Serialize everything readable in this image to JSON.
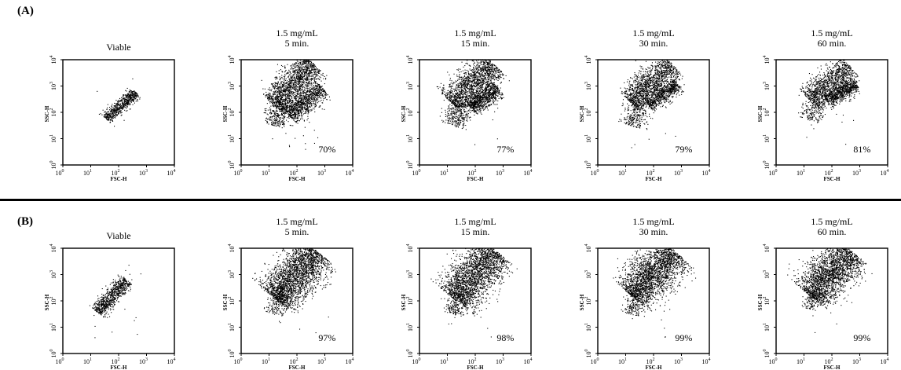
{
  "panels": [
    {
      "label": "(A)"
    },
    {
      "label": "(B)"
    }
  ],
  "chart_data": [
    {
      "type": "scatter",
      "panel": "(A)",
      "title": "Viable",
      "subtitle": "",
      "xlabel": "FSC-H",
      "ylabel": "SSC-H",
      "log": true,
      "xlim": [
        1,
        10000
      ],
      "ylim": [
        1,
        10000
      ],
      "ticks": [
        "10",
        "10",
        "10",
        "10",
        "10"
      ],
      "tick_exp": [
        "0",
        "1",
        "2",
        "3",
        "4"
      ],
      "percent": "",
      "clusters": [
        {
          "x0": 1.55,
          "y0": 1.75,
          "x1": 2.6,
          "y1": 2.78,
          "w": 0.11,
          "n": 650
        }
      ],
      "outliers": 6
    },
    {
      "type": "scatter",
      "panel": "(A)",
      "title": "1.5 mg/mL",
      "subtitle": "5 min.",
      "xlabel": "FSC-H",
      "ylabel": "SSC-H",
      "log": true,
      "xlim": [
        1,
        10000
      ],
      "ylim": [
        1,
        10000
      ],
      "ticks": [
        "10",
        "10",
        "10",
        "10",
        "10"
      ],
      "tick_exp": [
        "0",
        "1",
        "2",
        "3",
        "4"
      ],
      "percent": "70%",
      "clusters": [
        {
          "x0": 1.15,
          "y0": 2.3,
          "x1": 2.6,
          "y1": 3.85,
          "w": 0.3,
          "n": 1500
        },
        {
          "x0": 1.7,
          "y0": 1.9,
          "x1": 2.9,
          "y1": 2.95,
          "w": 0.2,
          "n": 900
        },
        {
          "x0": 1.2,
          "y0": 1.5,
          "x1": 1.45,
          "y1": 2.4,
          "w": 0.22,
          "n": 300
        }
      ],
      "outliers": 20
    },
    {
      "type": "scatter",
      "panel": "(A)",
      "title": "1.5 mg/mL",
      "subtitle": "15 min.",
      "xlabel": "FSC-H",
      "ylabel": "SSC-H",
      "log": true,
      "xlim": [
        1,
        10000
      ],
      "ylim": [
        1,
        10000
      ],
      "ticks": [
        "10",
        "10",
        "10",
        "10",
        "10"
      ],
      "tick_exp": [
        "0",
        "1",
        "2",
        "3",
        "4"
      ],
      "percent": "77%",
      "clusters": [
        {
          "x0": 1.15,
          "y0": 2.35,
          "x1": 2.65,
          "y1": 3.85,
          "w": 0.3,
          "n": 1500
        },
        {
          "x0": 1.8,
          "y0": 2.2,
          "x1": 2.8,
          "y1": 2.95,
          "w": 0.18,
          "n": 800
        },
        {
          "x0": 1.2,
          "y0": 1.5,
          "x1": 1.5,
          "y1": 2.4,
          "w": 0.22,
          "n": 300
        }
      ],
      "outliers": 20
    },
    {
      "type": "scatter",
      "panel": "(A)",
      "title": "1.5 mg/mL",
      "subtitle": "30 min.",
      "xlabel": "FSC-H",
      "ylabel": "SSC-H",
      "log": true,
      "xlim": [
        1,
        10000
      ],
      "ylim": [
        1,
        10000
      ],
      "ticks": [
        "10",
        "10",
        "10",
        "10",
        "10"
      ],
      "tick_exp": [
        "0",
        "1",
        "2",
        "3",
        "4"
      ],
      "percent": "79%",
      "clusters": [
        {
          "x0": 1.15,
          "y0": 2.4,
          "x1": 2.65,
          "y1": 3.85,
          "w": 0.28,
          "n": 1300
        },
        {
          "x0": 1.8,
          "y0": 2.3,
          "x1": 2.85,
          "y1": 3.1,
          "w": 0.16,
          "n": 700
        },
        {
          "x0": 1.2,
          "y0": 1.5,
          "x1": 1.5,
          "y1": 2.4,
          "w": 0.22,
          "n": 300
        }
      ],
      "outliers": 20
    },
    {
      "type": "scatter",
      "panel": "(A)",
      "title": "1.5 mg/mL",
      "subtitle": "60 min.",
      "xlabel": "FSC-H",
      "ylabel": "SSC-H",
      "log": true,
      "xlim": [
        1,
        10000
      ],
      "ylim": [
        1,
        10000
      ],
      "ticks": [
        "10",
        "10",
        "10",
        "10",
        "10"
      ],
      "tick_exp": [
        "0",
        "1",
        "2",
        "3",
        "4"
      ],
      "percent": "81%",
      "clusters": [
        {
          "x0": 1.15,
          "y0": 2.5,
          "x1": 2.65,
          "y1": 3.75,
          "w": 0.26,
          "n": 1100
        },
        {
          "x0": 1.8,
          "y0": 2.45,
          "x1": 2.85,
          "y1": 3.1,
          "w": 0.15,
          "n": 700
        },
        {
          "x0": 1.2,
          "y0": 1.7,
          "x1": 1.45,
          "y1": 2.5,
          "w": 0.2,
          "n": 200
        }
      ],
      "outliers": 15
    },
    {
      "type": "scatter",
      "panel": "(B)",
      "title": "Viable",
      "subtitle": "",
      "xlabel": "FSC-H",
      "ylabel": "SSC-H",
      "log": true,
      "xlim": [
        1,
        10000
      ],
      "ylim": [
        1,
        10000
      ],
      "ticks": [
        "10",
        "10",
        "10",
        "10",
        "10"
      ],
      "tick_exp": [
        "0",
        "1",
        "2",
        "3",
        "4"
      ],
      "percent": "",
      "clusters": [
        {
          "x0": 1.2,
          "y0": 1.6,
          "x1": 2.3,
          "y1": 2.8,
          "w": 0.14,
          "n": 800
        }
      ],
      "outliers": 25
    },
    {
      "type": "scatter",
      "panel": "(B)",
      "title": "1.5 mg/mL",
      "subtitle": "5 min.",
      "xlabel": "FSC-H",
      "ylabel": "SSC-H",
      "log": true,
      "xlim": [
        1,
        10000
      ],
      "ylim": [
        1,
        10000
      ],
      "ticks": [
        "10",
        "10",
        "10",
        "10",
        "10"
      ],
      "tick_exp": [
        "0",
        "1",
        "2",
        "3",
        "4"
      ],
      "percent": "97%",
      "clusters": [
        {
          "x0": 1.2,
          "y0": 2.1,
          "x1": 2.7,
          "y1": 3.9,
          "w": 0.4,
          "n": 2400
        },
        {
          "x0": 1.2,
          "y0": 1.5,
          "x1": 1.4,
          "y1": 2.3,
          "w": 0.18,
          "n": 200
        }
      ],
      "outliers": 15
    },
    {
      "type": "scatter",
      "panel": "(B)",
      "title": "1.5 mg/mL",
      "subtitle": "15 min.",
      "xlabel": "FSC-H",
      "ylabel": "SSC-H",
      "log": true,
      "xlim": [
        1,
        10000
      ],
      "ylim": [
        1,
        10000
      ],
      "ticks": [
        "10",
        "10",
        "10",
        "10",
        "10"
      ],
      "tick_exp": [
        "0",
        "1",
        "2",
        "3",
        "4"
      ],
      "percent": "98%",
      "clusters": [
        {
          "x0": 1.2,
          "y0": 2.1,
          "x1": 2.75,
          "y1": 3.9,
          "w": 0.4,
          "n": 2300
        },
        {
          "x0": 1.2,
          "y0": 1.5,
          "x1": 1.4,
          "y1": 2.3,
          "w": 0.18,
          "n": 200
        }
      ],
      "outliers": 15
    },
    {
      "type": "scatter",
      "panel": "(B)",
      "title": "1.5 mg/mL",
      "subtitle": "30 min.",
      "xlabel": "FSC-H",
      "ylabel": "SSC-H",
      "log": true,
      "xlim": [
        1,
        10000
      ],
      "ylim": [
        1,
        10000
      ],
      "ticks": [
        "10",
        "10",
        "10",
        "10",
        "10"
      ],
      "tick_exp": [
        "0",
        "1",
        "2",
        "3",
        "4"
      ],
      "percent": "99%",
      "clusters": [
        {
          "x0": 1.2,
          "y0": 2.2,
          "x1": 2.75,
          "y1": 3.9,
          "w": 0.4,
          "n": 2300
        },
        {
          "x0": 1.2,
          "y0": 1.5,
          "x1": 1.4,
          "y1": 2.3,
          "w": 0.18,
          "n": 200
        }
      ],
      "outliers": 15
    },
    {
      "type": "scatter",
      "panel": "(B)",
      "title": "1.5 mg/mL",
      "subtitle": "60 min.",
      "xlabel": "FSC-H",
      "ylabel": "SSC-H",
      "log": true,
      "xlim": [
        1,
        10000
      ],
      "ylim": [
        1,
        10000
      ],
      "ticks": [
        "10",
        "10",
        "10",
        "10",
        "10"
      ],
      "tick_exp": [
        "0",
        "1",
        "2",
        "3",
        "4"
      ],
      "percent": "99%",
      "clusters": [
        {
          "x0": 1.2,
          "y0": 2.2,
          "x1": 2.7,
          "y1": 3.9,
          "w": 0.38,
          "n": 2200
        },
        {
          "x0": 1.2,
          "y0": 1.7,
          "x1": 1.4,
          "y1": 2.4,
          "w": 0.16,
          "n": 150
        }
      ],
      "outliers": 12
    }
  ]
}
